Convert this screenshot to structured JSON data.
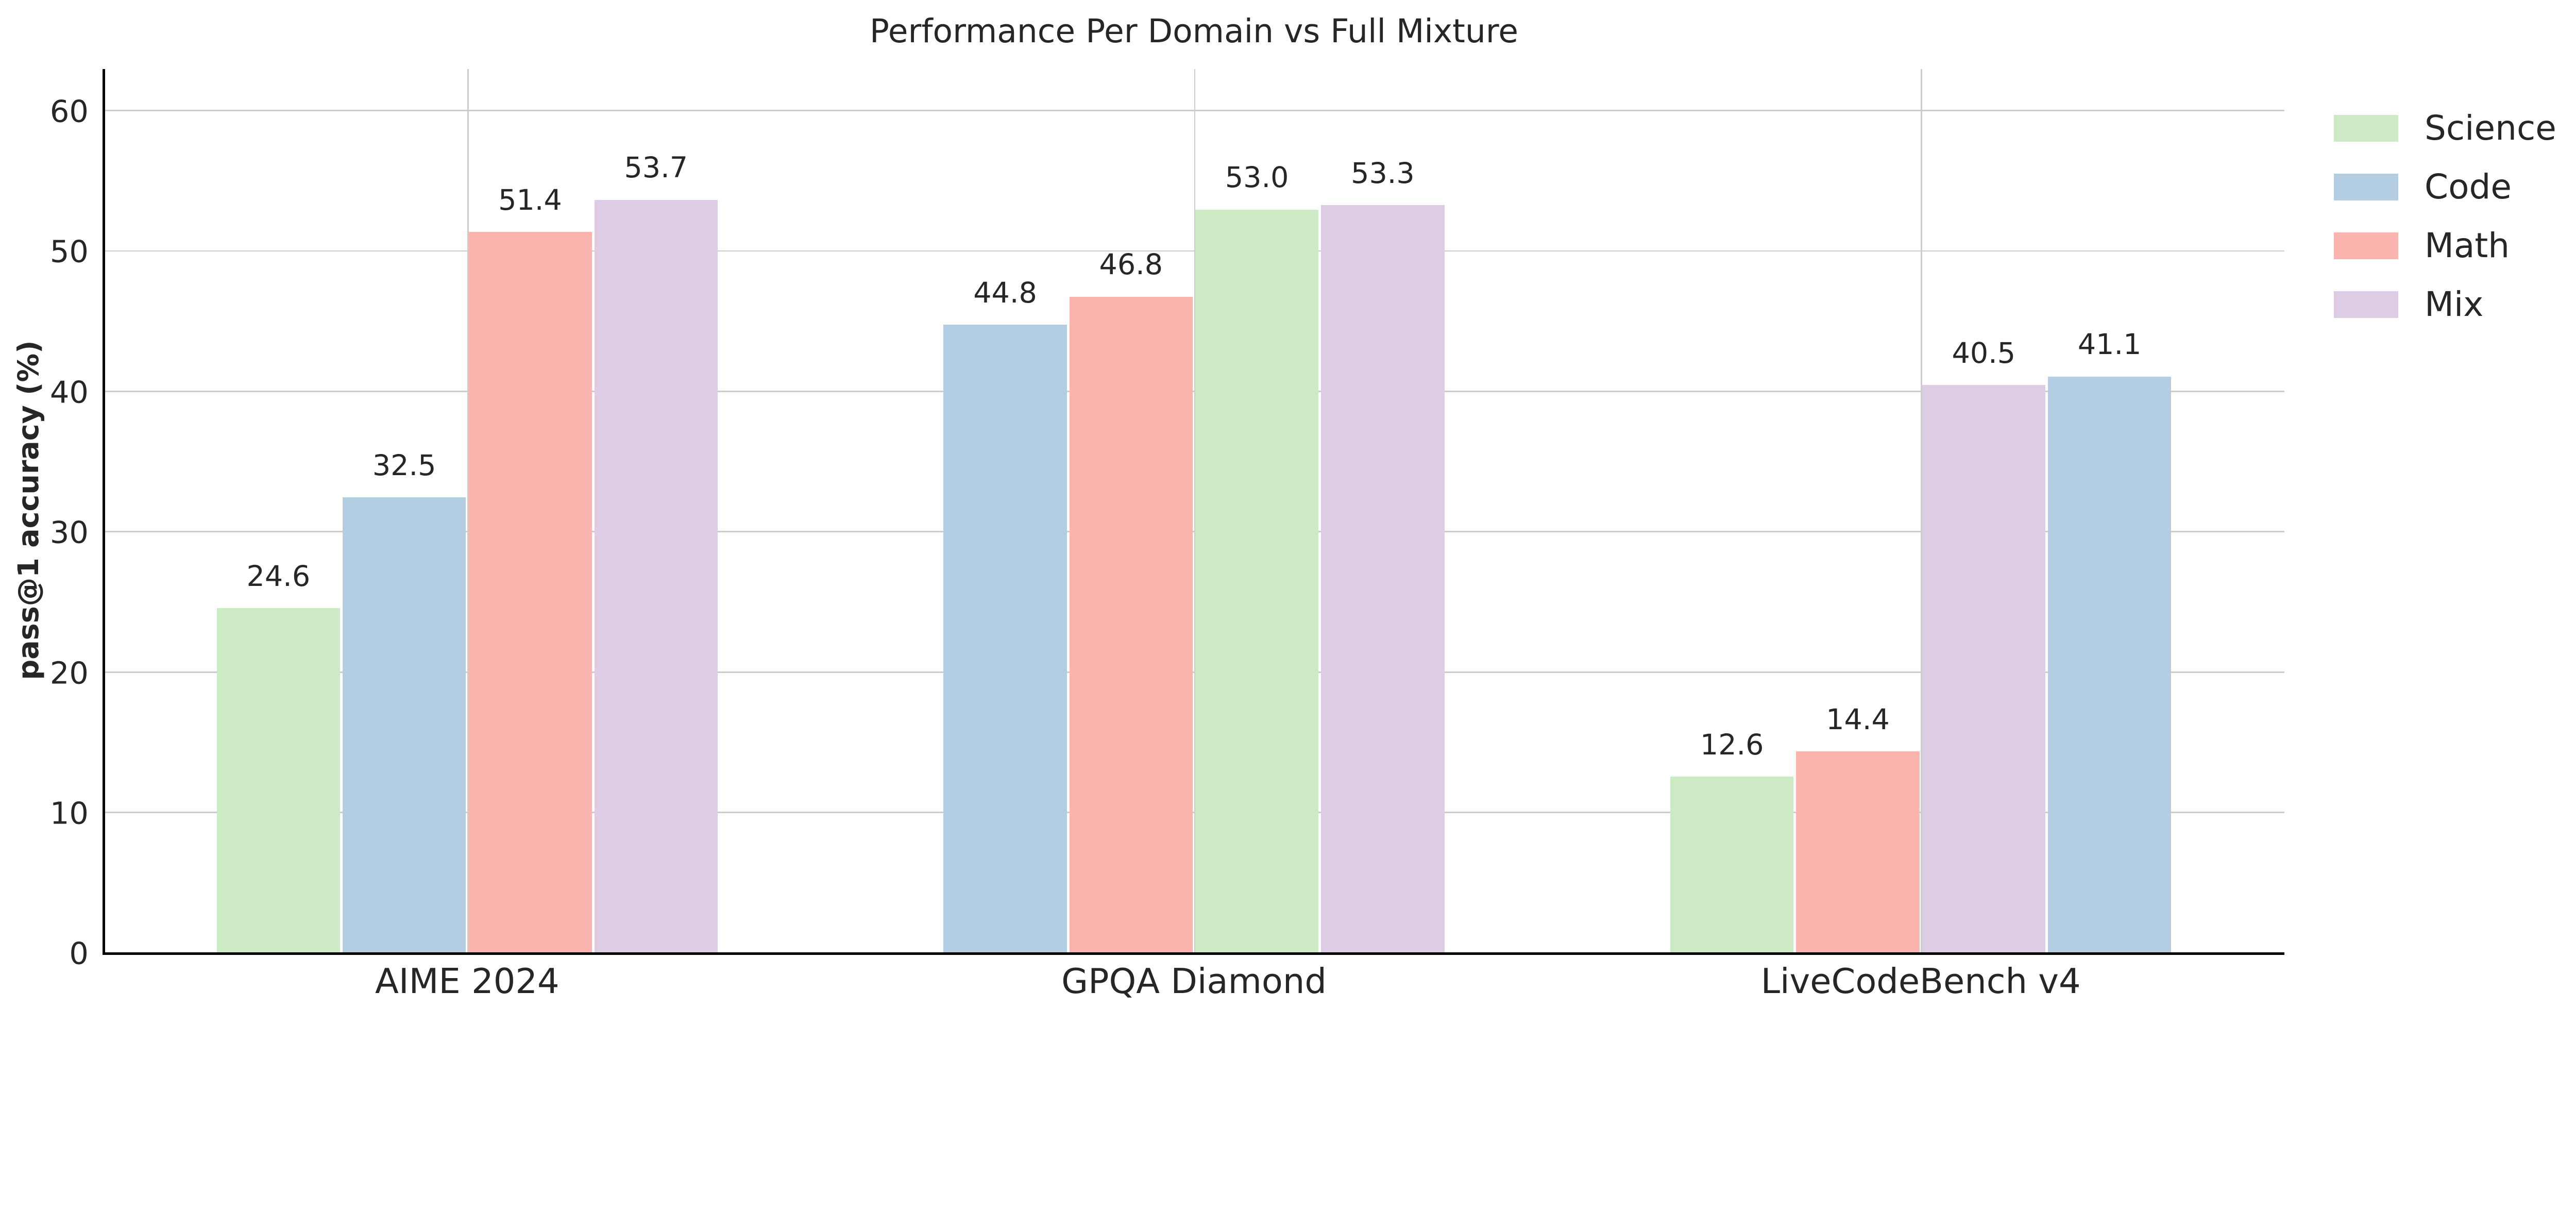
{
  "figure": {
    "background": "#ffffff"
  },
  "chart_data": {
    "type": "bar",
    "title": "Performance Per Domain vs Full Mixture",
    "ylabel": "pass@1 accuracy (%)",
    "xlabel": "",
    "ylim": [
      0,
      63
    ],
    "yticks": [
      0,
      10,
      20,
      30,
      40,
      50,
      60
    ],
    "grid": {
      "horizontal": true,
      "vertical": true,
      "on": true
    },
    "legend_position": "upper-right-outside",
    "categories": [
      "AIME 2024",
      "GPQA Diamond",
      "LiveCodeBench v4"
    ],
    "series": [
      {
        "name": "Science",
        "color": "#ccebc5",
        "values": [
          24.6,
          53.0,
          12.6
        ]
      },
      {
        "name": "Code",
        "color": "#b3cde3",
        "values": [
          32.5,
          44.8,
          41.1
        ]
      },
      {
        "name": "Math",
        "color": "#fbb4ae",
        "values": [
          51.4,
          46.8,
          14.4
        ]
      },
      {
        "name": "Mix",
        "color": "#decbe4",
        "values": [
          53.7,
          53.3,
          40.5
        ]
      }
    ],
    "bar_order": "ascending within each category group",
    "groups": [
      {
        "category": "AIME 2024",
        "bars": [
          {
            "series": "Science",
            "value": 24.6,
            "label": "24.6"
          },
          {
            "series": "Code",
            "value": 32.5,
            "label": "32.5"
          },
          {
            "series": "Math",
            "value": 51.4,
            "label": "51.4"
          },
          {
            "series": "Mix",
            "value": 53.7,
            "label": "53.7"
          }
        ]
      },
      {
        "category": "GPQA Diamond",
        "bars": [
          {
            "series": "Code",
            "value": 44.8,
            "label": "44.8"
          },
          {
            "series": "Math",
            "value": 46.8,
            "label": "46.8"
          },
          {
            "series": "Science",
            "value": 53.0,
            "label": "53.0"
          },
          {
            "series": "Mix",
            "value": 53.3,
            "label": "53.3"
          }
        ]
      },
      {
        "category": "LiveCodeBench v4",
        "bars": [
          {
            "series": "Science",
            "value": 12.6,
            "label": "12.6"
          },
          {
            "series": "Math",
            "value": 14.4,
            "label": "14.4"
          },
          {
            "series": "Mix",
            "value": 40.5,
            "label": "40.5"
          },
          {
            "series": "Code",
            "value": 41.1,
            "label": "41.1"
          }
        ]
      }
    ],
    "legend": [
      {
        "label": "Science",
        "color": "#ccebc5"
      },
      {
        "label": "Code",
        "color": "#b3cde3"
      },
      {
        "label": "Math",
        "color": "#fbb4ae"
      },
      {
        "label": "Mix",
        "color": "#decbe4"
      }
    ],
    "style": {
      "text_color": "#262626",
      "spine_color": "#000000",
      "grid_color": "#cccccc"
    }
  }
}
